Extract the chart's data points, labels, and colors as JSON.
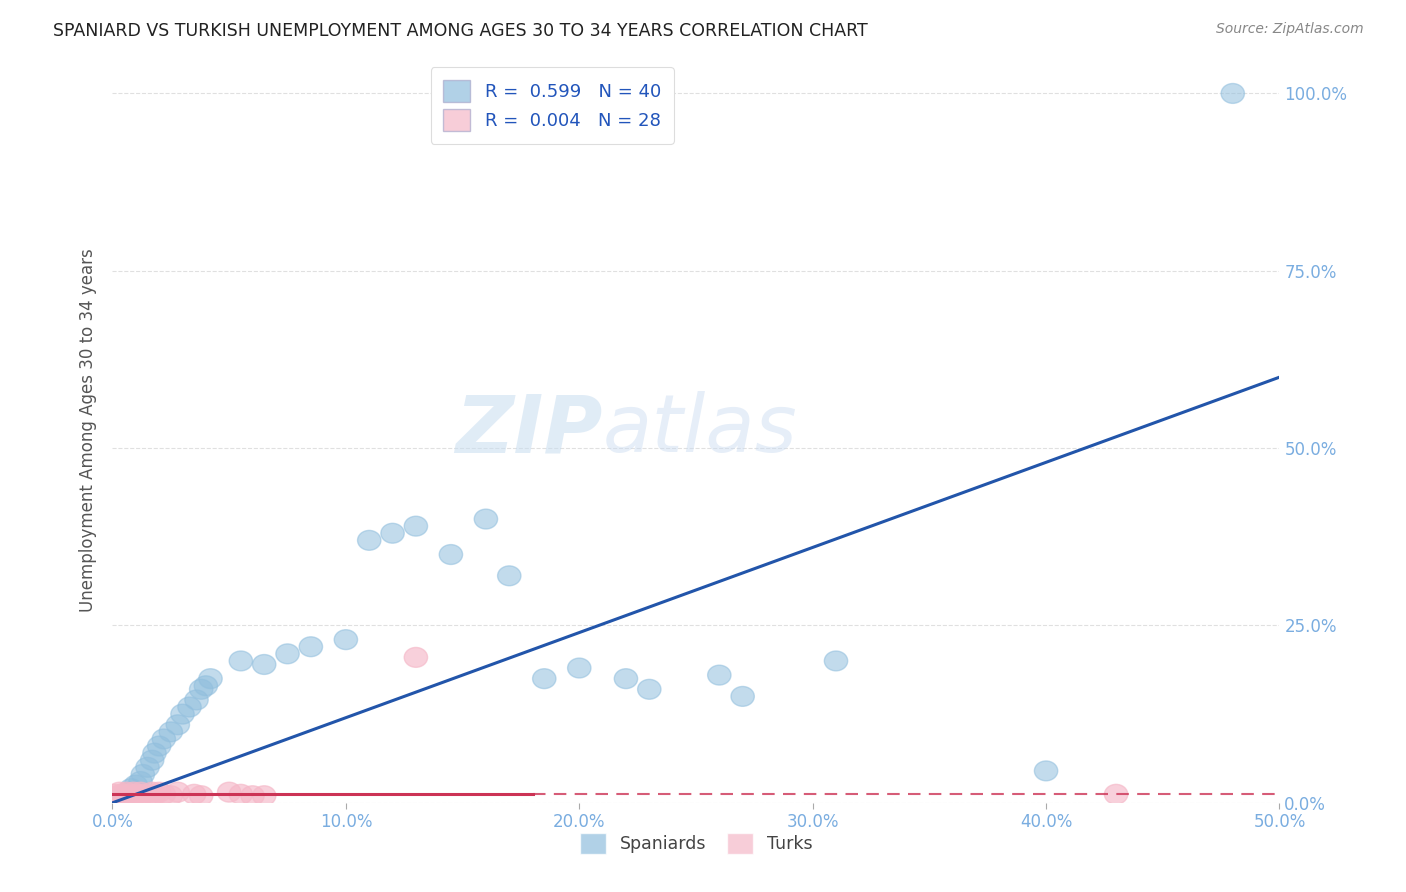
{
  "title": "SPANIARD VS TURKISH UNEMPLOYMENT AMONG AGES 30 TO 34 YEARS CORRELATION CHART",
  "source": "Source: ZipAtlas.com",
  "ylabel": "Unemployment Among Ages 30 to 34 years",
  "xlim": [
    0.0,
    0.5
  ],
  "ylim": [
    0.0,
    1.05
  ],
  "legend1_label": "Spaniards",
  "legend2_label": "Turks",
  "R_spaniards": 0.599,
  "N_spaniards": 40,
  "R_turks": 0.004,
  "N_turks": 28,
  "spaniard_color": "#90bedd",
  "turk_color": "#f5b8c8",
  "spaniard_line_color": "#2255aa",
  "turk_line_color": "#cc3355",
  "spaniard_x": [
    0.003,
    0.005,
    0.007,
    0.008,
    0.01,
    0.012,
    0.013,
    0.015,
    0.017,
    0.018,
    0.02,
    0.022,
    0.025,
    0.028,
    0.03,
    0.033,
    0.036,
    0.038,
    0.04,
    0.042,
    0.055,
    0.065,
    0.075,
    0.085,
    0.1,
    0.11,
    0.12,
    0.13,
    0.145,
    0.16,
    0.17,
    0.185,
    0.2,
    0.22,
    0.23,
    0.26,
    0.27,
    0.31,
    0.4,
    0.48
  ],
  "spaniard_y": [
    0.005,
    0.01,
    0.015,
    0.02,
    0.025,
    0.03,
    0.04,
    0.05,
    0.06,
    0.07,
    0.08,
    0.09,
    0.1,
    0.11,
    0.125,
    0.135,
    0.145,
    0.16,
    0.165,
    0.175,
    0.2,
    0.195,
    0.21,
    0.22,
    0.23,
    0.37,
    0.38,
    0.39,
    0.35,
    0.4,
    0.32,
    0.175,
    0.19,
    0.175,
    0.16,
    0.18,
    0.15,
    0.2,
    0.045,
    1.0
  ],
  "turk_x": [
    0.001,
    0.002,
    0.003,
    0.004,
    0.005,
    0.006,
    0.007,
    0.008,
    0.009,
    0.01,
    0.011,
    0.012,
    0.013,
    0.015,
    0.017,
    0.018,
    0.02,
    0.022,
    0.025,
    0.028,
    0.035,
    0.038,
    0.05,
    0.055,
    0.06,
    0.065,
    0.13,
    0.43
  ],
  "turk_y": [
    0.012,
    0.01,
    0.015,
    0.012,
    0.01,
    0.015,
    0.012,
    0.01,
    0.015,
    0.012,
    0.01,
    0.015,
    0.012,
    0.01,
    0.015,
    0.012,
    0.015,
    0.012,
    0.01,
    0.015,
    0.012,
    0.01,
    0.015,
    0.012,
    0.01,
    0.01,
    0.205,
    0.012
  ],
  "spaniard_line_x": [
    0.0,
    0.5
  ],
  "spaniard_line_y": [
    0.0,
    0.6
  ],
  "turk_line_x0": 0.0,
  "turk_line_x1": 0.5,
  "turk_line_y": 0.012,
  "grid_color": "#cccccc",
  "tick_color": "#7aade0",
  "xlabel_ticks": [
    "0.0%",
    "10.0%",
    "20.0%",
    "30.0%",
    "40.0%",
    "50.0%"
  ],
  "ylabel_ticks": [
    "0.0%",
    "25.0%",
    "50.0%",
    "75.0%",
    "100.0%"
  ],
  "ytick_vals": [
    0.0,
    0.25,
    0.5,
    0.75,
    1.0
  ]
}
